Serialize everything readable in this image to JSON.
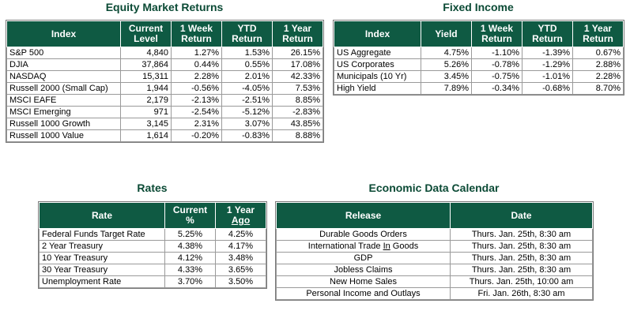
{
  "equity": {
    "title": "Equity Market Returns",
    "headers": {
      "index": "Index",
      "level_1": "Current",
      "level_2": "Level",
      "week_1": "1 Week",
      "week_2": "Return",
      "ytd_1": "YTD",
      "ytd_2": "Return",
      "year_1": "1 Year",
      "year_2": "Return"
    },
    "rows": [
      {
        "index": "S&P 500",
        "level": "4,840",
        "week": "1.27%",
        "ytd": "1.53%",
        "year": "26.15%"
      },
      {
        "index": "DJIA",
        "level": "37,864",
        "week": "0.44%",
        "ytd": "0.55%",
        "year": "17.08%"
      },
      {
        "index": "NASDAQ",
        "level": "15,311",
        "week": "2.28%",
        "ytd": "2.01%",
        "year": "42.33%"
      },
      {
        "index": "Russell 2000 (Small Cap)",
        "level": "1,944",
        "week": "-0.56%",
        "ytd": "-4.05%",
        "year": "7.53%"
      },
      {
        "index": "MSCI EAFE",
        "level": "2,179",
        "week": "-2.13%",
        "ytd": "-2.51%",
        "year": "8.85%"
      },
      {
        "index": "MSCI Emerging",
        "level": "971",
        "week": "-2.54%",
        "ytd": "-5.12%",
        "year": "-2.83%"
      },
      {
        "index": "Russell 1000 Growth",
        "level": "3,145",
        "week": "2.31%",
        "ytd": "3.07%",
        "year": "43.85%"
      },
      {
        "index": "Russell 1000 Value",
        "level": "1,614",
        "week": "-0.20%",
        "ytd": "-0.83%",
        "year": "8.88%"
      }
    ]
  },
  "fixed": {
    "title": "Fixed Income",
    "headers": {
      "index": "Index",
      "yield": "Yield",
      "week_1": "1 Week",
      "week_2": "Return",
      "ytd_1": "YTD",
      "ytd_2": "Return",
      "year_1": "1 Year",
      "year_2": "Return"
    },
    "rows": [
      {
        "index": "US Aggregate",
        "yield": "4.75%",
        "week": "-1.10%",
        "ytd": "-1.39%",
        "year": "0.67%"
      },
      {
        "index": "US Corporates",
        "yield": "5.26%",
        "week": "-0.78%",
        "ytd": "-1.29%",
        "year": "2.88%"
      },
      {
        "index": "Municipals (10 Yr)",
        "yield": "3.45%",
        "week": "-0.75%",
        "ytd": "-1.01%",
        "year": "2.28%"
      },
      {
        "index": "High Yield",
        "yield": "7.89%",
        "week": "-0.34%",
        "ytd": "-0.68%",
        "year": "8.70%"
      }
    ]
  },
  "rates": {
    "title": "Rates",
    "headers": {
      "rate": "Rate",
      "current_1": "Current",
      "current_2": "%",
      "year_1": "1 Year",
      "year_2": "Ago"
    },
    "rows": [
      {
        "rate": "Federal Funds Target Rate",
        "current": "5.25%",
        "year": "4.25%"
      },
      {
        "rate": "2 Year Treasury",
        "current": "4.38%",
        "year": "4.17%"
      },
      {
        "rate": "10 Year Treasury",
        "current": "4.12%",
        "year": "3.48%"
      },
      {
        "rate": "30 Year Treasury",
        "current": "4.33%",
        "year": "3.65%"
      },
      {
        "rate": "Unemployment Rate",
        "current": "3.70%",
        "year": "3.50%"
      }
    ]
  },
  "calendar": {
    "title": "Economic Data Calendar",
    "headers": {
      "release": "Release",
      "date": "Date"
    },
    "rows": [
      {
        "release": "Durable Goods Orders",
        "date": "Thurs. Jan. 25th, 8:30 am"
      },
      {
        "release_a": "International Trade ",
        "release_b": "In",
        "release_c": " Goods",
        "date": "Thurs. Jan. 25th, 8:30 am"
      },
      {
        "release": "GDP",
        "date": "Thurs. Jan. 25th, 8:30 am"
      },
      {
        "release": "Jobless Claims",
        "date": "Thurs. Jan. 25th, 8:30 am"
      },
      {
        "release": "New Home Sales",
        "date": "Thurs. Jan. 25th, 10:00 am"
      },
      {
        "release": "Personal Income and Outlays",
        "date": "Fri. Jan. 26th, 8:30 am"
      }
    ]
  }
}
